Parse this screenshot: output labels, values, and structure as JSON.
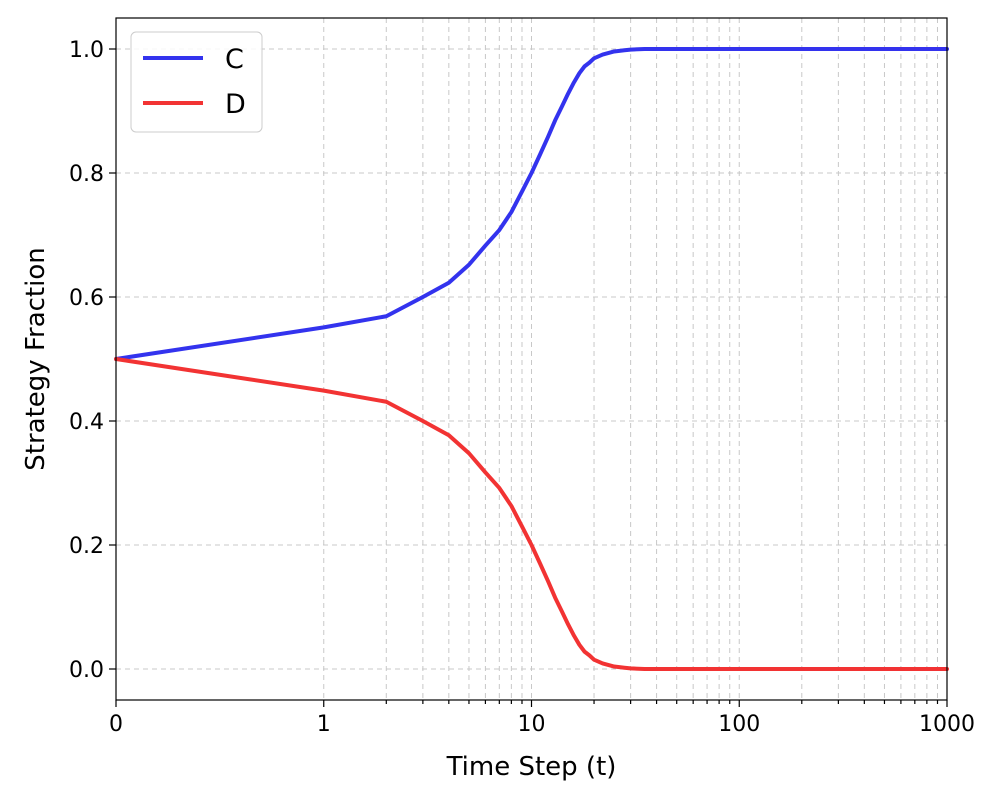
{
  "chart_data": {
    "type": "line",
    "title": "",
    "xlabel": "Time Step (t)",
    "ylabel": "Strategy Fraction",
    "xscale": "symlog",
    "xlim": [
      0,
      1000
    ],
    "ylim": [
      -0.05,
      1.05
    ],
    "xticks": [
      0,
      1,
      10,
      100,
      1000
    ],
    "xtick_labels": [
      "0",
      "1",
      "10",
      "100",
      "1000"
    ],
    "yticks": [
      0.0,
      0.2,
      0.4,
      0.6,
      0.8,
      1.0
    ],
    "ytick_labels": [
      "0.0",
      "0.2",
      "0.4",
      "0.6",
      "0.8",
      "1.0"
    ],
    "grid": true,
    "legend_position": "top-left",
    "x": [
      0,
      1,
      2,
      3,
      4,
      5,
      6,
      7,
      8,
      9,
      10,
      11,
      12,
      13,
      14,
      15,
      16,
      17,
      18,
      19,
      20,
      22,
      25,
      28,
      30,
      35,
      40,
      50,
      60,
      80,
      100,
      200,
      300,
      500,
      700,
      1000
    ],
    "series": [
      {
        "name": "C",
        "color": "#3333ee",
        "values": [
          0.5,
          0.551,
          0.569,
          0.6,
          0.623,
          0.652,
          0.683,
          0.708,
          0.737,
          0.77,
          0.8,
          0.83,
          0.858,
          0.885,
          0.907,
          0.928,
          0.946,
          0.961,
          0.972,
          0.978,
          0.985,
          0.991,
          0.996,
          0.998,
          0.999,
          1.0,
          1.0,
          1.0,
          1.0,
          1.0,
          1.0,
          1.0,
          1.0,
          1.0,
          1.0,
          1.0
        ]
      },
      {
        "name": "D",
        "color": "#f23333",
        "values": [
          0.5,
          0.449,
          0.431,
          0.4,
          0.377,
          0.348,
          0.317,
          0.292,
          0.263,
          0.23,
          0.2,
          0.17,
          0.142,
          0.115,
          0.093,
          0.072,
          0.054,
          0.039,
          0.028,
          0.022,
          0.015,
          0.009,
          0.004,
          0.002,
          0.001,
          0.0,
          0.0,
          0.0,
          0.0,
          0.0,
          0.0,
          0.0,
          0.0,
          0.0,
          0.0,
          0.0
        ]
      }
    ]
  }
}
